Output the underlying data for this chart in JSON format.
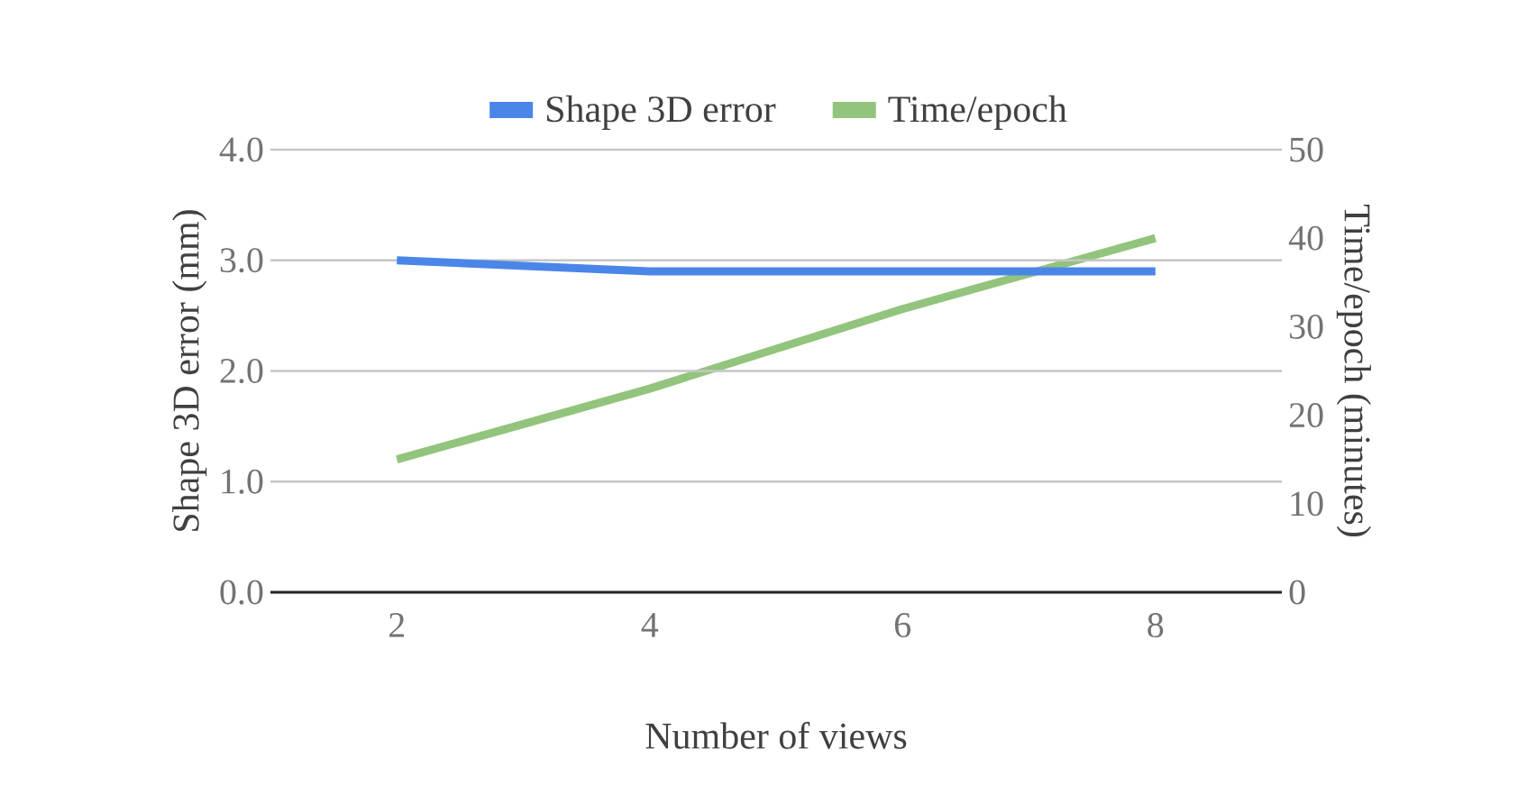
{
  "chart_data": {
    "type": "line",
    "xlabel": "Number of views",
    "ylabel": "Shape 3D error (mm)",
    "y2label": "Time/epoch (minutes)",
    "categories": [
      "2",
      "4",
      "6",
      "8"
    ],
    "series": [
      {
        "name": "Shape 3D error",
        "color": "#4a86e8",
        "values": [
          3.0,
          2.9,
          2.9,
          2.9
        ]
      },
      {
        "name": "Time/epoch",
        "color": "#93c47d",
        "axis": "y2",
        "values": [
          15,
          23,
          32,
          40
        ]
      }
    ],
    "ylim": [
      0,
      4
    ],
    "yticks": [
      {
        "value": 0,
        "label": "0.0"
      },
      {
        "value": 1,
        "label": "1.0"
      },
      {
        "value": 2,
        "label": "2.0"
      },
      {
        "value": 3,
        "label": "3.0"
      },
      {
        "value": 4,
        "label": "4.0"
      }
    ],
    "y2lim": [
      0,
      50
    ],
    "y2ticks": [
      0,
      10,
      20,
      30,
      40,
      50
    ],
    "grid": "y",
    "legend": "top",
    "marker": "none",
    "line_style": "solid"
  }
}
